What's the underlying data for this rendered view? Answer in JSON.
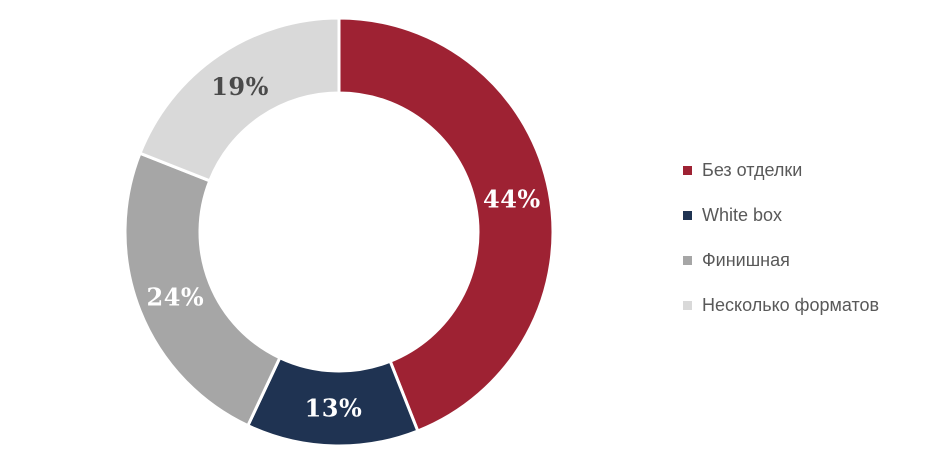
{
  "chart_data": {
    "type": "pie",
    "subtype": "donut",
    "title": "",
    "unit": "%",
    "categories": [
      "Без отделки",
      "White box",
      "Финишная",
      "Несколько форматов"
    ],
    "values": [
      44,
      13,
      24,
      19
    ],
    "segments": [
      {
        "label": "Без отделки",
        "value": 44,
        "display": "44%",
        "color": "#9E2233",
        "label_color": "#FFFFFF"
      },
      {
        "label": "White box",
        "value": 13,
        "display": "13%",
        "color": "#1F3352",
        "label_color": "#FFFFFF"
      },
      {
        "label": "Финишная",
        "value": 24,
        "display": "24%",
        "color": "#A6A6A6",
        "label_color": "#FFFFFF"
      },
      {
        "label": "Несколько форматов",
        "value": 19,
        "display": "19%",
        "color": "#D9D9D9",
        "label_color": "#4A4A4A"
      }
    ],
    "layout": {
      "start_angle_deg": 0,
      "direction": "clockwise",
      "legend_position": "right",
      "legend_text_color": "#595959",
      "separator_color": "#FFFFFF",
      "grid": false
    }
  }
}
